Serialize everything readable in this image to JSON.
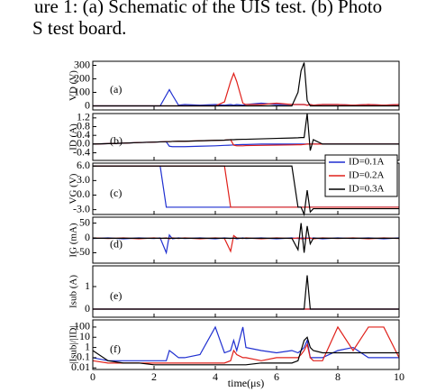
{
  "caption": [
    "ure 1: (a) Schematic of the UIS test. (b) Photo",
    "S test board."
  ],
  "chart_data": [
    {
      "type": "line",
      "panel_label": "(a)",
      "ylabel": "VD (V)",
      "x": [
        0,
        0.5,
        1,
        1.5,
        2,
        2.2,
        2.4,
        2.5,
        2.6,
        2.8,
        3,
        3.5,
        4,
        4.3,
        4.5,
        4.6,
        4.7,
        4.9,
        5,
        5.5,
        6,
        6.5,
        6.7,
        6.8,
        6.9,
        7,
        7.1,
        7.2,
        7.5,
        8,
        8.5,
        9,
        9.5,
        10
      ],
      "xlim": [
        0,
        10
      ],
      "xticks": [
        0,
        2,
        4,
        6,
        8,
        10
      ],
      "ylim": [
        -30,
        330
      ],
      "yticks": [
        0,
        100,
        200,
        300
      ],
      "series": [
        {
          "color": "#1f2fd0",
          "values": [
            0,
            0,
            0,
            0,
            0,
            0,
            80,
            120,
            80,
            5,
            10,
            5,
            10,
            5,
            10,
            5,
            10,
            5,
            10,
            20,
            10,
            10,
            10,
            10,
            10,
            5,
            10,
            5,
            10,
            10,
            5,
            10,
            5,
            10
          ]
        },
        {
          "color": "#e0201a",
          "values": [
            0,
            0,
            0,
            0,
            0,
            0,
            0,
            0,
            0,
            0,
            0,
            0,
            0,
            30,
            180,
            240,
            180,
            20,
            10,
            10,
            20,
            10,
            10,
            10,
            10,
            5,
            10,
            5,
            10,
            10,
            5,
            10,
            5,
            10
          ]
        },
        {
          "color": "#000000",
          "values": [
            0,
            0,
            0,
            0,
            0,
            0,
            0,
            0,
            0,
            0,
            0,
            0,
            0,
            0,
            0,
            0,
            0,
            0,
            0,
            0,
            0,
            0,
            100,
            260,
            320,
            40,
            0,
            0,
            0,
            0,
            0,
            0,
            0,
            0
          ]
        }
      ]
    },
    {
      "type": "line",
      "panel_label": "(b)",
      "ylabel": "ID (A)",
      "x": [
        0,
        0.5,
        1,
        1.5,
        2,
        2.2,
        2.4,
        2.5,
        2.6,
        2.8,
        3,
        3.5,
        4,
        4.3,
        4.5,
        4.6,
        4.7,
        4.9,
        5,
        5.5,
        6,
        6.5,
        6.7,
        6.8,
        6.9,
        7,
        7.1,
        7.2,
        7.5,
        8,
        8.5,
        9,
        9.5,
        10
      ],
      "xlim": [
        0,
        10
      ],
      "xticks": [
        0,
        2,
        4,
        6,
        8,
        10
      ],
      "ylim": [
        -0.75,
        1.4
      ],
      "yticks": [
        -0.4,
        {
          "value": 0,
          "label": "0.0"
        },
        0.4,
        0.8,
        1.2
      ],
      "series": [
        {
          "color": "#1f2fd0",
          "values": [
            0,
            0.02,
            0.04,
            0.07,
            0.09,
            0.1,
            0.1,
            -0.1,
            -0.12,
            -0.12,
            -0.12,
            -0.1,
            -0.08,
            -0.06,
            -0.05,
            -0.04,
            -0.03,
            -0.02,
            -0.02,
            0,
            0,
            0,
            0,
            0,
            0,
            0,
            0,
            0,
            0,
            0,
            0,
            0,
            0,
            0
          ]
        },
        {
          "color": "#e0201a",
          "values": [
            0,
            0.02,
            0.04,
            0.07,
            0.09,
            0.1,
            0.11,
            0.11,
            0.12,
            0.13,
            0.13,
            0.15,
            0.17,
            0.18,
            0.2,
            -0.05,
            -0.08,
            -0.08,
            -0.07,
            -0.06,
            -0.05,
            -0.04,
            -0.03,
            -0.03,
            -0.02,
            0,
            0,
            0,
            0,
            0,
            0,
            0,
            0,
            0
          ]
        },
        {
          "color": "#000000",
          "values": [
            0,
            0.02,
            0.04,
            0.07,
            0.09,
            0.1,
            0.11,
            0.11,
            0.12,
            0.13,
            0.13,
            0.15,
            0.17,
            0.18,
            0.2,
            0.2,
            0.21,
            0.22,
            0.22,
            0.24,
            0.26,
            0.28,
            0.29,
            0.3,
            0.3,
            1.4,
            -0.3,
            0.2,
            0,
            0,
            0,
            0,
            0,
            0
          ]
        }
      ]
    },
    {
      "type": "line",
      "panel_label": "(c)",
      "ylabel": "VG (V)",
      "legend": "upper right",
      "x": [
        0,
        0.5,
        1,
        1.5,
        2,
        2.2,
        2.4,
        2.5,
        2.6,
        2.8,
        3,
        3.5,
        4,
        4.3,
        4.5,
        4.6,
        4.7,
        4.9,
        5,
        5.5,
        6,
        6.5,
        6.7,
        6.8,
        6.9,
        7,
        7.1,
        7.2,
        7.5,
        8,
        8.5,
        9,
        9.5,
        10
      ],
      "xlim": [
        0,
        10
      ],
      "xticks": [
        0,
        2,
        4,
        6,
        8,
        10
      ],
      "ylim": [
        -4,
        6.6
      ],
      "yticks": [
        {
          "value": -3,
          "label": "-3.0"
        },
        {
          "value": 0,
          "label": "0.0"
        },
        {
          "value": 3,
          "label": "3.0"
        },
        {
          "value": 6,
          "label": "6.0"
        }
      ],
      "series": [
        {
          "name": "ID=0.1A",
          "color": "#1f2fd0",
          "values": [
            6,
            6,
            6,
            6,
            6,
            6,
            -2.5,
            -2.5,
            -2.5,
            -2.5,
            -2.5,
            -2.5,
            -2.5,
            -2.5,
            -2.5,
            -2.5,
            -2.5,
            -2.5,
            -2.5,
            -2.5,
            -2.5,
            -2.5,
            -2.5,
            -2.5,
            -2.5,
            -2.5,
            -2.5,
            -2.5,
            -2.5,
            -2.5,
            -2.5,
            -2.5,
            -2.5,
            -2.5
          ]
        },
        {
          "name": "ID=0.2A",
          "color": "#e0201a",
          "values": [
            6,
            6,
            6,
            6,
            6,
            6,
            6,
            6,
            6,
            6,
            6,
            6,
            6,
            6,
            -2.5,
            -2.5,
            -2.5,
            -2.5,
            -2.5,
            -2.5,
            -2.5,
            -2.5,
            -2.5,
            -2.5,
            -2.5,
            -2.5,
            -2.5,
            -2.5,
            -2.5,
            -2.5,
            -2.5,
            -2.5,
            -2.5,
            -2.5
          ]
        },
        {
          "name": "ID=0.3A",
          "color": "#000000",
          "values": [
            6,
            6,
            6,
            6,
            6,
            6,
            6,
            6,
            6,
            6,
            6,
            6,
            6,
            6,
            6,
            6,
            6,
            6,
            6,
            6,
            6,
            6,
            -2.5,
            -2.5,
            -4,
            1,
            -3.5,
            -2.8,
            -2.8,
            -2.8,
            -2.8,
            -2.8,
            -2.8,
            -2.8
          ]
        }
      ]
    },
    {
      "type": "line",
      "panel_label": "(d)",
      "ylabel": "IG (mA)",
      "x": [
        0,
        0.5,
        1,
        1.5,
        2,
        2.2,
        2.4,
        2.5,
        2.6,
        2.8,
        3,
        3.5,
        4,
        4.3,
        4.5,
        4.6,
        4.7,
        4.9,
        5,
        5.5,
        6,
        6.5,
        6.7,
        6.8,
        6.9,
        7,
        7.1,
        7.2,
        7.5,
        8,
        8.5,
        9,
        9.5,
        10
      ],
      "xlim": [
        0,
        10
      ],
      "xticks": [
        0,
        2,
        4,
        6,
        8,
        10
      ],
      "ylim": [
        -85,
        70
      ],
      "yticks": [
        -50,
        0,
        50
      ],
      "series": [
        {
          "color": "#1f2fd0",
          "values": [
            -2,
            0,
            -3,
            0,
            -2,
            0,
            -50,
            10,
            -3,
            0,
            -2,
            0,
            -3,
            0,
            -2,
            0,
            -3,
            0,
            -2,
            0,
            -3,
            0,
            -2,
            0,
            -3,
            0,
            -2,
            0,
            -3,
            0,
            -2,
            0,
            -3,
            0
          ]
        },
        {
          "color": "#e0201a",
          "values": [
            0,
            -2,
            0,
            -3,
            0,
            -2,
            0,
            -3,
            0,
            -2,
            0,
            -3,
            0,
            -2,
            -45,
            8,
            0,
            -2,
            0,
            -3,
            0,
            -2,
            0,
            -3,
            0,
            -2,
            0,
            -3,
            0,
            -2,
            0,
            -3,
            0,
            -2
          ]
        },
        {
          "color": "#000000",
          "values": [
            -1,
            -1,
            -1,
            -1,
            -1,
            -1,
            -1,
            -1,
            -1,
            -1,
            -1,
            -1,
            -1,
            -1,
            -1,
            -1,
            -1,
            -1,
            -1,
            -1,
            -1,
            -1,
            -40,
            50,
            -50,
            40,
            -20,
            -1,
            -1,
            -1,
            -1,
            -1,
            -1,
            -1
          ]
        }
      ]
    },
    {
      "type": "line",
      "panel_label": "(e)",
      "ylabel": "Isub (A)",
      "x": [
        0,
        0.5,
        1,
        1.5,
        2,
        2.2,
        2.4,
        2.5,
        2.6,
        2.8,
        3,
        3.5,
        4,
        4.3,
        4.5,
        4.6,
        4.7,
        4.9,
        5,
        5.5,
        6,
        6.5,
        6.7,
        6.8,
        6.9,
        7,
        7.1,
        7.2,
        7.5,
        8,
        8.5,
        9,
        9.5,
        10
      ],
      "xlim": [
        0,
        10
      ],
      "xticks": [
        0,
        2,
        4,
        6,
        8,
        10
      ],
      "ylim": [
        -0.36,
        1.92
      ],
      "yticks": [
        0,
        1
      ],
      "series": [
        {
          "color": "#1f2fd0",
          "values": [
            0,
            0,
            0,
            0,
            0,
            0,
            0,
            0,
            0,
            0,
            0,
            0,
            0,
            0,
            0,
            0,
            0,
            0,
            0,
            0,
            0,
            0,
            0,
            0,
            0,
            0,
            0,
            0,
            0,
            0,
            0,
            0,
            0,
            0
          ]
        },
        {
          "color": "#e0201a",
          "values": [
            0,
            0,
            0,
            0,
            0,
            0,
            0,
            0,
            0,
            0,
            0,
            0,
            0,
            0,
            0,
            0,
            0,
            0,
            0,
            0,
            0,
            0,
            0,
            0,
            0,
            0,
            0,
            0,
            0,
            0,
            0,
            0,
            0,
            0
          ]
        },
        {
          "color": "#000000",
          "values": [
            0,
            0,
            0,
            0,
            0,
            0,
            0,
            0,
            0,
            0,
            0,
            0,
            0,
            0,
            0,
            0,
            0,
            0,
            0,
            0,
            0,
            0,
            0,
            0,
            0,
            1.5,
            0,
            0,
            0,
            0,
            0,
            0,
            0,
            0
          ]
        }
      ]
    },
    {
      "type": "line",
      "panel_label": "(f)",
      "ylabel": "|Isub|/|ID|",
      "log": true,
      "xlabel": "time(μs)",
      "x": [
        0,
        0.5,
        1,
        1.5,
        2,
        2.2,
        2.4,
        2.5,
        2.6,
        2.8,
        3,
        3.5,
        4,
        4.3,
        4.5,
        4.6,
        4.7,
        4.9,
        5,
        5.5,
        6,
        6.5,
        6.7,
        6.8,
        6.9,
        7,
        7.1,
        7.2,
        7.5,
        8,
        8.5,
        9,
        9.5,
        10
      ],
      "xlim": [
        0,
        10
      ],
      "xticks": [
        0,
        2,
        4,
        6,
        8,
        10
      ],
      "ylim": [
        0.007,
        500
      ],
      "yticks": [
        0.01,
        0.1,
        1,
        10,
        100
      ],
      "series": [
        {
          "color": "#1f2fd0",
          "values": [
            0.1,
            0.05,
            0.05,
            0.05,
            0.05,
            0.05,
            0.05,
            0.5,
            0.3,
            0.1,
            0.1,
            0.2,
            100,
            0.3,
            0.5,
            5,
            0.5,
            100,
            1,
            0.5,
            0.3,
            0.5,
            0.3,
            0.5,
            1,
            5,
            0.1,
            0.1,
            0.1,
            0.5,
            1,
            0.1,
            0.1,
            0.1
          ]
        },
        {
          "color": "#e0201a",
          "values": [
            0.05,
            0.03,
            0.03,
            0.03,
            0.03,
            0.03,
            0.03,
            0.03,
            0.03,
            0.03,
            0.03,
            0.03,
            0.03,
            0.03,
            0.05,
            0.5,
            0.2,
            0.1,
            0.1,
            0.05,
            0.1,
            0.1,
            0.1,
            0.2,
            0.5,
            2,
            0.1,
            0.05,
            0.05,
            100,
            0.5,
            100,
            100,
            0.1
          ]
        },
        {
          "color": "#000000",
          "values": [
            0.5,
            0.05,
            0.03,
            0.03,
            0.02,
            0.02,
            0.02,
            0.02,
            0.02,
            0.02,
            0.02,
            0.02,
            0.02,
            0.02,
            0.02,
            0.02,
            0.02,
            0.02,
            0.02,
            0.03,
            0.03,
            0.03,
            0.05,
            0.5,
            5,
            10,
            1,
            0.5,
            0.3,
            0.3,
            0.3,
            0.3,
            0.3,
            0.3
          ]
        }
      ]
    }
  ]
}
